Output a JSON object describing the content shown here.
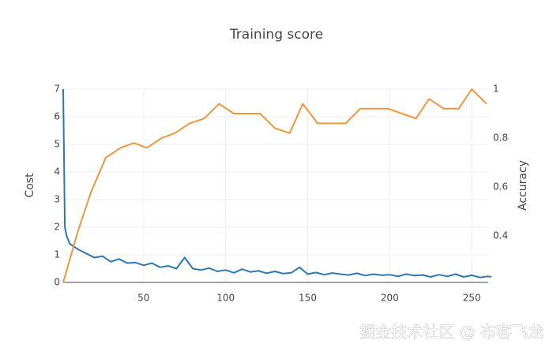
{
  "chart_data": {
    "type": "line",
    "title": "Training score",
    "y_label": "Cost",
    "y2_label": "Accuracy",
    "watermark": "掘金技术社区 @ 布客飞龙",
    "xlim": [
      1,
      260
    ],
    "xticks": [
      50,
      100,
      150,
      200,
      250
    ],
    "ylim": [
      0,
      7
    ],
    "yticks": [
      0,
      1,
      2,
      3,
      4,
      5,
      6,
      7
    ],
    "y2lim": [
      0.21,
      1
    ],
    "y2ticks": [
      0.4,
      0.6,
      0.8,
      1
    ],
    "grid": true,
    "series": [
      {
        "name": "Cost",
        "color": "#2c78b0",
        "x": [
          1,
          2,
          3,
          5,
          10,
          15,
          20,
          25,
          30,
          35,
          40,
          45,
          50,
          55,
          60,
          65,
          70,
          75,
          80,
          85,
          90,
          95,
          100,
          105,
          110,
          115,
          120,
          125,
          130,
          135,
          140,
          145,
          150,
          155,
          160,
          165,
          170,
          175,
          180,
          185,
          190,
          195,
          200,
          205,
          210,
          215,
          220,
          225,
          230,
          235,
          240,
          245,
          250,
          255,
          260,
          262
        ],
        "values": [
          7,
          2.0,
          1.7,
          1.4,
          1.2,
          1.05,
          0.9,
          0.95,
          0.75,
          0.85,
          0.7,
          0.72,
          0.62,
          0.7,
          0.55,
          0.6,
          0.5,
          0.9,
          0.5,
          0.45,
          0.52,
          0.4,
          0.45,
          0.35,
          0.48,
          0.38,
          0.42,
          0.33,
          0.4,
          0.32,
          0.35,
          0.55,
          0.3,
          0.36,
          0.28,
          0.34,
          0.3,
          0.27,
          0.33,
          0.25,
          0.3,
          0.26,
          0.28,
          0.22,
          0.3,
          0.25,
          0.27,
          0.2,
          0.28,
          0.22,
          0.3,
          0.2,
          0.26,
          0.18,
          0.22,
          0.2
        ]
      },
      {
        "name": "Accuracy",
        "color": "#f0963c",
        "axis": "y2",
        "x": [
          1,
          10,
          18,
          27,
          36,
          44,
          52,
          61,
          69,
          78,
          87,
          96,
          105,
          121,
          130,
          139,
          147,
          156,
          173,
          182,
          199,
          216,
          224,
          233,
          242,
          250,
          259
        ],
        "values": [
          0.21,
          0.42,
          0.58,
          0.72,
          0.76,
          0.78,
          0.76,
          0.8,
          0.82,
          0.86,
          0.88,
          0.94,
          0.9,
          0.9,
          0.84,
          0.82,
          0.94,
          0.86,
          0.86,
          0.92,
          0.92,
          0.88,
          0.96,
          0.92,
          0.92,
          1.0,
          0.94
        ]
      }
    ]
  }
}
